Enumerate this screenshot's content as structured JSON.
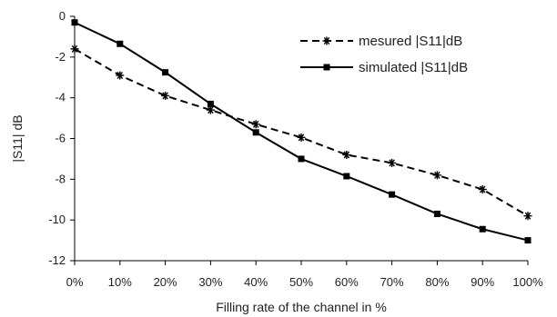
{
  "chart_data": {
    "type": "line",
    "x_label": "Filling rate of the channel in %",
    "y_label": "|S11| dB",
    "categories": [
      "0%",
      "10%",
      "20%",
      "30%",
      "40%",
      "50%",
      "60%",
      "70%",
      "80%",
      "90%",
      "100%"
    ],
    "y_ticks": [
      "0",
      "-2",
      "-4",
      "-6",
      "-8",
      "-10",
      "-12"
    ],
    "ylim": [
      -12,
      0
    ],
    "grid": false,
    "legend_position": "top-right",
    "series": [
      {
        "name": "mesured |S11|dB",
        "style": "dashed",
        "marker": "asterisk",
        "color": "#000000",
        "values": [
          -1.6,
          -2.9,
          -3.9,
          -4.6,
          -5.3,
          -5.95,
          -6.8,
          -7.2,
          -7.8,
          -8.5,
          -9.8
        ]
      },
      {
        "name": "simulated |S11|dB",
        "style": "solid",
        "marker": "square",
        "color": "#000000",
        "values": [
          -0.3,
          -1.35,
          -2.75,
          -4.3,
          -5.7,
          -7.0,
          -7.85,
          -8.75,
          -9.7,
          -10.45,
          -11.0
        ]
      }
    ]
  }
}
